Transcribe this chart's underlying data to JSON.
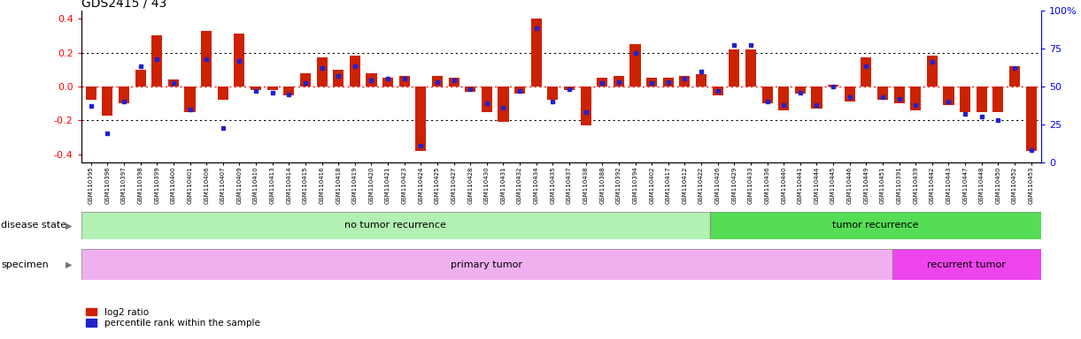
{
  "title": "GDS2415 / 43",
  "samples": [
    "GSM110395",
    "GSM110396",
    "GSM110397",
    "GSM110398",
    "GSM110399",
    "GSM110400",
    "GSM110401",
    "GSM110406",
    "GSM110407",
    "GSM110409",
    "GSM110410",
    "GSM110413",
    "GSM110414",
    "GSM110415",
    "GSM110416",
    "GSM110418",
    "GSM110419",
    "GSM110420",
    "GSM110421",
    "GSM110423",
    "GSM110424",
    "GSM110425",
    "GSM110427",
    "GSM110428",
    "GSM110430",
    "GSM110431",
    "GSM110432",
    "GSM110434",
    "GSM110435",
    "GSM110437",
    "GSM110438",
    "GSM110388",
    "GSM110392",
    "GSM110394",
    "GSM110402",
    "GSM110417",
    "GSM110412",
    "GSM110422",
    "GSM110426",
    "GSM110429",
    "GSM110433",
    "GSM110436",
    "GSM110440",
    "GSM110441",
    "GSM110444",
    "GSM110445",
    "GSM110446",
    "GSM110449",
    "GSM110451",
    "GSM110391",
    "GSM110439",
    "GSM110442",
    "GSM110443",
    "GSM110447",
    "GSM110448",
    "GSM110450",
    "GSM110452",
    "GSM110453"
  ],
  "log2_ratio": [
    -0.08,
    -0.17,
    -0.1,
    0.1,
    0.3,
    0.04,
    -0.15,
    0.33,
    -0.08,
    0.31,
    -0.02,
    -0.02,
    -0.05,
    0.08,
    0.17,
    0.1,
    0.18,
    0.08,
    0.05,
    0.06,
    -0.38,
    0.06,
    0.05,
    -0.03,
    -0.15,
    -0.21,
    -0.04,
    0.4,
    -0.08,
    -0.02,
    -0.23,
    0.05,
    0.06,
    0.25,
    0.05,
    0.05,
    0.06,
    0.07,
    -0.05,
    0.22,
    0.22,
    -0.1,
    -0.14,
    -0.04,
    -0.13,
    0.01,
    -0.09,
    0.17,
    -0.08,
    -0.1,
    -0.14,
    0.18,
    -0.11,
    -0.15,
    -0.15,
    -0.15,
    0.12,
    -0.38
  ],
  "percentile": [
    37,
    19,
    40,
    63,
    68,
    52,
    35,
    68,
    23,
    67,
    47,
    46,
    45,
    52,
    62,
    57,
    63,
    54,
    55,
    55,
    11,
    53,
    54,
    48,
    39,
    36,
    47,
    88,
    40,
    48,
    33,
    52,
    53,
    72,
    52,
    53,
    55,
    60,
    47,
    77,
    77,
    40,
    38,
    46,
    38,
    50,
    43,
    63,
    43,
    42,
    38,
    66,
    40,
    32,
    30,
    28,
    62,
    8
  ],
  "no_recurrence_color": "#b3f0b3",
  "recurrence_color": "#55dd55",
  "primary_tumor_color": "#f0b0f0",
  "recurrent_tumor_color": "#ee44ee",
  "bar_color": "#cc2200",
  "dot_color": "#2222cc",
  "ylim": [
    -0.45,
    0.45
  ],
  "yticks_left": [
    -0.4,
    -0.2,
    0.0,
    0.2,
    0.4
  ],
  "yticks_right": [
    0,
    25,
    50,
    75,
    100
  ],
  "no_recurrence_count": 38,
  "recurrence_count": 20,
  "primary_tumor_count": 49,
  "recurrent_tumor_count": 9
}
